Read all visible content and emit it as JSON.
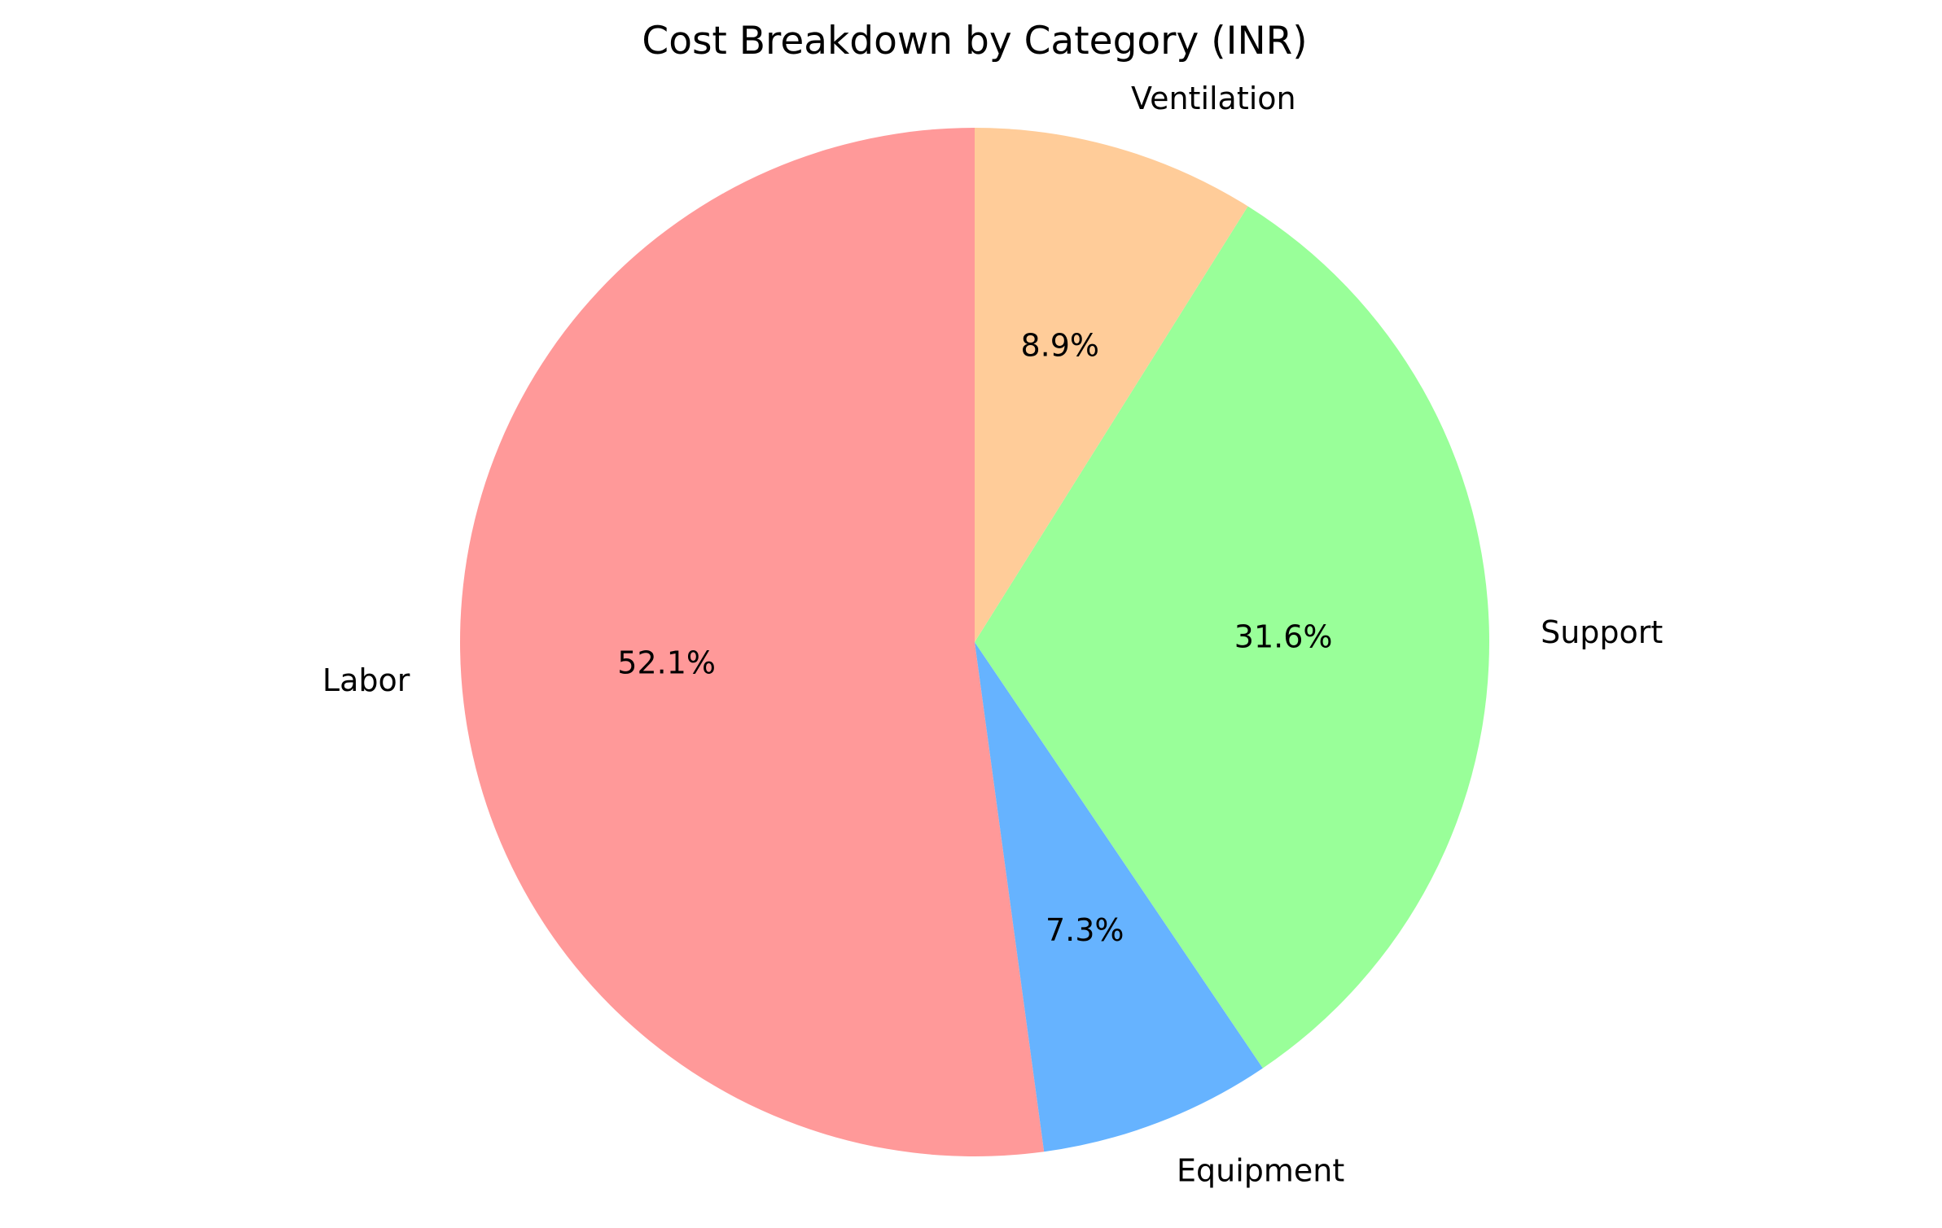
{
  "chart_data": {
    "type": "pie",
    "title": "Cost Breakdown by Category (INR)",
    "start_angle": 90,
    "direction": "counterclockwise",
    "slices": [
      {
        "label": "Labor",
        "percent": 52.1,
        "percent_label": "52.1%",
        "color": "#ff9999"
      },
      {
        "label": "Equipment",
        "percent": 7.3,
        "percent_label": "7.3%",
        "color": "#66b3ff"
      },
      {
        "label": "Support",
        "percent": 31.6,
        "percent_label": "31.6%",
        "color": "#99ff99"
      },
      {
        "label": "Ventilation",
        "percent": 8.9,
        "percent_label": "8.9%",
        "color": "#ffcc99"
      }
    ]
  }
}
